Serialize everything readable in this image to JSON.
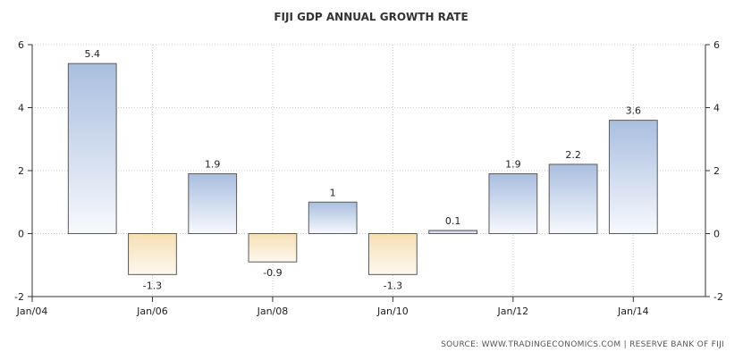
{
  "chart_data": {
    "type": "bar",
    "title": "FIJI GDP ANNUAL GROWTH RATE",
    "source": "SOURCE: WWW.TRADINGECONOMICS.COM | RESERVE BANK OF FIJI",
    "x": [
      2005,
      2006,
      2007,
      2008,
      2009,
      2010,
      2011,
      2012,
      2013,
      2014
    ],
    "values": [
      5.4,
      -1.3,
      1.9,
      -0.9,
      1,
      -1.3,
      0.1,
      1.9,
      2.2,
      3.6
    ],
    "data_labels": [
      "5.4",
      "-1.3",
      "1.9",
      "-0.9",
      "1",
      "-1.3",
      "0.1",
      "1.9",
      "2.2",
      "3.6"
    ],
    "x_ticks": [
      {
        "value": 2004,
        "label": "Jan/04"
      },
      {
        "value": 2006,
        "label": "Jan/06"
      },
      {
        "value": 2008,
        "label": "Jan/08"
      },
      {
        "value": 2010,
        "label": "Jan/10"
      },
      {
        "value": 2012,
        "label": "Jan/12"
      },
      {
        "value": 2014,
        "label": "Jan/14"
      }
    ],
    "y_ticks": [
      -2,
      0,
      2,
      4,
      6
    ],
    "xlim": [
      2004,
      2015.2
    ],
    "ylim": [
      -2,
      6
    ],
    "grid": true,
    "y_axis_both_sides": true,
    "colors": {
      "positive_top": "#a9bedf",
      "positive_bottom": "#f7f9fd",
      "negative_top": "#f6dfb4",
      "negative_bottom": "#fdf8ee",
      "bar_stroke": "#5a5a5a",
      "grid": "#cccccc",
      "axis": "#333333"
    }
  }
}
